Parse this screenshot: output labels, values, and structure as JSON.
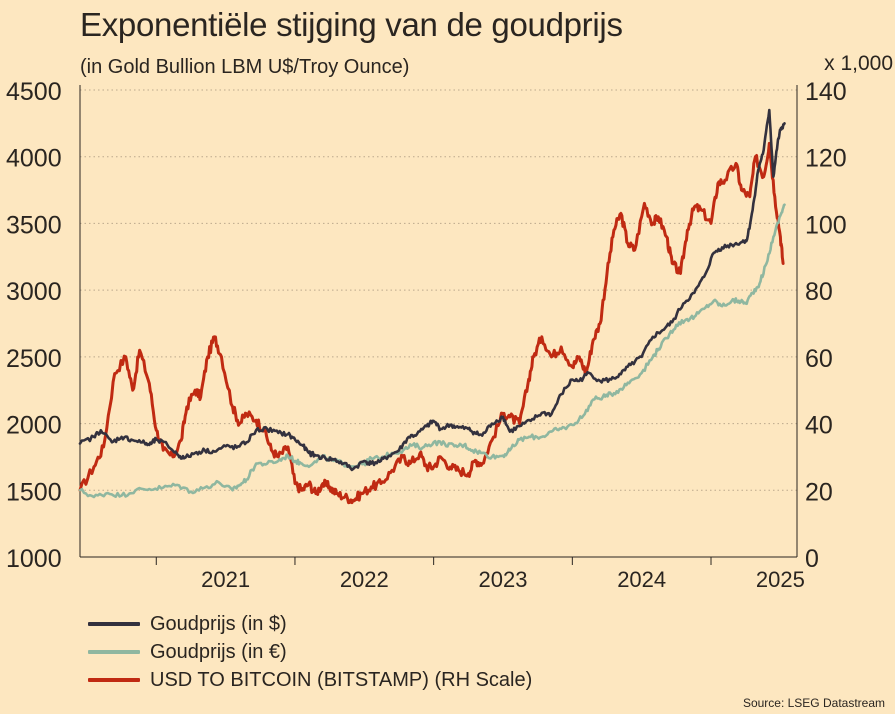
{
  "chart_data": {
    "type": "line",
    "title": "Exponentiële stijging van de goudprijs",
    "subtitle": "(in Gold Bullion LBM U$/Troy Ounce)",
    "right_axis_unit": "x 1,000",
    "x_ticks": [
      "2021",
      "2022",
      "2023",
      "2024",
      "2025"
    ],
    "x_range": [
      2020.45,
      2025.62
    ],
    "y_left": {
      "ticks": [
        4500,
        4000,
        3500,
        3000,
        2500,
        2000,
        1500,
        1000
      ],
      "range": [
        1000,
        4500
      ]
    },
    "y_right": {
      "ticks": [
        140,
        120,
        100,
        80,
        60,
        40,
        20,
        0
      ],
      "range": [
        0,
        140
      ]
    },
    "grid": "horizontal-dotted",
    "series": [
      {
        "name": "USD TO BITCOIN (BITSTAMP) (RH Scale)",
        "axis": "right",
        "color": "#c02a12",
        "x": [
          2020.45,
          2020.55,
          2020.62,
          2020.7,
          2020.78,
          2020.83,
          2020.88,
          2020.95,
          2021.0,
          2021.05,
          2021.12,
          2021.18,
          2021.22,
          2021.28,
          2021.32,
          2021.37,
          2021.42,
          2021.47,
          2021.55,
          2021.6,
          2021.65,
          2021.72,
          2021.78,
          2021.83,
          2021.88,
          2021.95,
          2022.0,
          2022.05,
          2022.1,
          2022.15,
          2022.2,
          2022.25,
          2022.3,
          2022.36,
          2022.42,
          2022.48,
          2022.55,
          2022.62,
          2022.7,
          2022.78,
          2022.83,
          2022.9,
          2022.95,
          2023.0,
          2023.05,
          2023.12,
          2023.18,
          2023.25,
          2023.3,
          2023.35,
          2023.42,
          2023.5,
          2023.55,
          2023.62,
          2023.68,
          2023.72,
          2023.78,
          2023.85,
          2023.92,
          2024.0,
          2024.05,
          2024.1,
          2024.15,
          2024.2,
          2024.25,
          2024.3,
          2024.35,
          2024.4,
          2024.45,
          2024.52,
          2024.58,
          2024.62,
          2024.68,
          2024.72,
          2024.78,
          2024.83,
          2024.88,
          2024.93,
          2025.0,
          2025.05,
          2025.1,
          2025.18,
          2025.22,
          2025.28,
          2025.32,
          2025.38,
          2025.42,
          2025.46,
          2025.5,
          2025.52
        ],
        "values": [
          20,
          27,
          33,
          55,
          60,
          50,
          62,
          52,
          38,
          32,
          30,
          35,
          45,
          50,
          48,
          60,
          66,
          60,
          45,
          40,
          43,
          41,
          38,
          32,
          30,
          33,
          22,
          20,
          22,
          19,
          22,
          21,
          19,
          18,
          17,
          19,
          21,
          22,
          26,
          30,
          28,
          31,
          27,
          27,
          30,
          27,
          26,
          25,
          29,
          28,
          35,
          43,
          42,
          40,
          52,
          60,
          66,
          60,
          63,
          57,
          60,
          55,
          65,
          70,
          85,
          98,
          103,
          94,
          92,
          106,
          100,
          102,
          96,
          88,
          85,
          98,
          105,
          104,
          100,
          112,
          113,
          118,
          110,
          108,
          120,
          114,
          124,
          108,
          96,
          88
        ]
      },
      {
        "name": "Goudprijs (in €)",
        "axis": "left",
        "color": "#8fb7a0",
        "x": [
          2020.45,
          2020.55,
          2020.65,
          2020.75,
          2020.85,
          2020.95,
          2021.05,
          2021.15,
          2021.25,
          2021.35,
          2021.45,
          2021.55,
          2021.6,
          2021.65,
          2021.72,
          2021.8,
          2021.88,
          2021.95,
          2022.0,
          2022.05,
          2022.12,
          2022.2,
          2022.28,
          2022.35,
          2022.4,
          2022.5,
          2022.55,
          2022.62,
          2022.7,
          2022.78,
          2022.85,
          2022.92,
          2023.0,
          2023.08,
          2023.15,
          2023.22,
          2023.28,
          2023.35,
          2023.42,
          2023.5,
          2023.55,
          2023.62,
          2023.7,
          2023.78,
          2023.85,
          2023.92,
          2024.0,
          2024.08,
          2024.15,
          2024.22,
          2024.28,
          2024.35,
          2024.42,
          2024.5,
          2024.58,
          2024.62,
          2024.68,
          2024.75,
          2024.82,
          2024.88,
          2024.95,
          2025.02,
          2025.08,
          2025.15,
          2025.2,
          2025.25,
          2025.3,
          2025.35,
          2025.4,
          2025.45,
          2025.5,
          2025.53
        ],
        "values": [
          1500,
          1450,
          1480,
          1460,
          1500,
          1510,
          1520,
          1540,
          1490,
          1520,
          1560,
          1500,
          1540,
          1580,
          1700,
          1700,
          1720,
          1760,
          1720,
          1700,
          1690,
          1750,
          1720,
          1700,
          1680,
          1700,
          1740,
          1740,
          1780,
          1800,
          1840,
          1820,
          1860,
          1850,
          1830,
          1840,
          1800,
          1780,
          1750,
          1760,
          1800,
          1880,
          1900,
          1900,
          1940,
          1960,
          1990,
          2060,
          2180,
          2200,
          2220,
          2260,
          2320,
          2380,
          2500,
          2560,
          2640,
          2740,
          2780,
          2800,
          2860,
          2920,
          2880,
          2920,
          2920,
          2900,
          2980,
          3050,
          3200,
          3400,
          3560,
          3640
        ]
      },
      {
        "name": "Goudprijs (in $)",
        "axis": "left",
        "color": "#33313e",
        "x": [
          2020.45,
          2020.55,
          2020.6,
          2020.68,
          2020.75,
          2020.82,
          2020.9,
          2020.95,
          2021.0,
          2021.08,
          2021.15,
          2021.2,
          2021.28,
          2021.35,
          2021.42,
          2021.5,
          2021.58,
          2021.65,
          2021.72,
          2021.8,
          2021.88,
          2021.95,
          2022.0,
          2022.05,
          2022.1,
          2022.15,
          2022.22,
          2022.28,
          2022.35,
          2022.42,
          2022.5,
          2022.55,
          2022.62,
          2022.68,
          2022.75,
          2022.82,
          2022.88,
          2022.95,
          2023.0,
          2023.05,
          2023.12,
          2023.18,
          2023.25,
          2023.3,
          2023.35,
          2023.42,
          2023.5,
          2023.55,
          2023.62,
          2023.7,
          2023.78,
          2023.85,
          2023.92,
          2024.0,
          2024.05,
          2024.12,
          2024.2,
          2024.28,
          2024.35,
          2024.42,
          2024.5,
          2024.58,
          2024.65,
          2024.72,
          2024.8,
          2024.88,
          2024.95,
          2025.02,
          2025.08,
          2025.15,
          2025.22,
          2025.26,
          2025.3,
          2025.34,
          2025.38,
          2025.42,
          2025.45,
          2025.48,
          2025.5,
          2025.53
        ],
        "values": [
          1850,
          1900,
          1950,
          1860,
          1900,
          1880,
          1860,
          1840,
          1880,
          1840,
          1770,
          1740,
          1780,
          1800,
          1790,
          1830,
          1820,
          1860,
          1950,
          1960,
          1930,
          1920,
          1880,
          1840,
          1780,
          1760,
          1740,
          1730,
          1700,
          1660,
          1720,
          1700,
          1720,
          1760,
          1800,
          1900,
          1920,
          1980,
          2020,
          1960,
          1990,
          1970,
          1960,
          1930,
          1910,
          2000,
          2050,
          1940,
          1980,
          2020,
          2080,
          2070,
          2220,
          2330,
          2320,
          2380,
          2320,
          2330,
          2370,
          2440,
          2500,
          2650,
          2700,
          2760,
          2900,
          2980,
          3100,
          3280,
          3320,
          3340,
          3360,
          3380,
          3600,
          3900,
          4050,
          4350,
          3850,
          4100,
          4200,
          4250
        ]
      }
    ]
  },
  "legend": {
    "gold_usd": "Goudprijs (in $)",
    "gold_eur": "Goudprijs (in €)",
    "bitcoin": "USD TO BITCOIN (BITSTAMP) (RH Scale)"
  },
  "colors": {
    "background": "#fde7c0",
    "gold_usd": "#33313e",
    "gold_eur": "#8fb7a0",
    "bitcoin": "#c02a12"
  },
  "source": "Source: LSEG Datastream"
}
